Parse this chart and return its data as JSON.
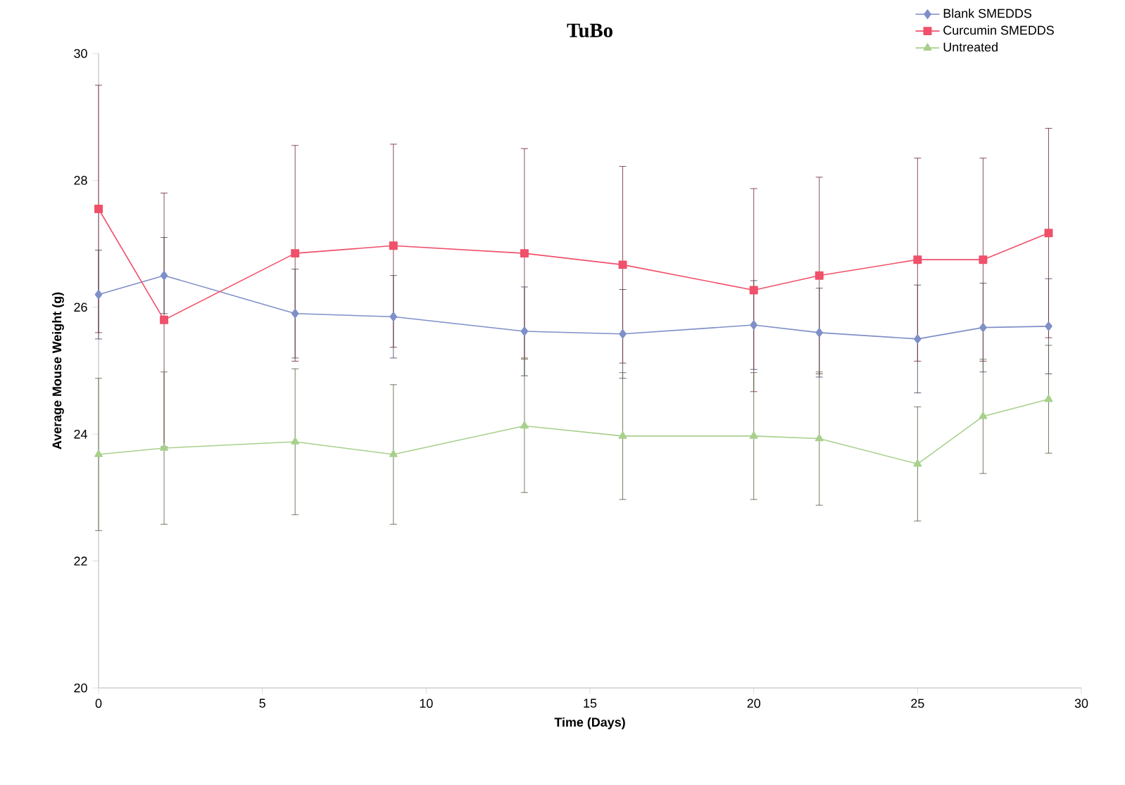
{
  "chart_data": {
    "type": "line",
    "title": "TuBo",
    "xlabel": "Time (Days)",
    "ylabel": "Average Mouse Weight (g)",
    "x": [
      0,
      2,
      6,
      9,
      13,
      16,
      20,
      22,
      25,
      27,
      29
    ],
    "xlim": [
      0,
      30
    ],
    "xticks": [
      0,
      5,
      10,
      15,
      20,
      25,
      30
    ],
    "ylim": [
      20,
      30
    ],
    "yticks": [
      20,
      22,
      24,
      26,
      28,
      30
    ],
    "grid": false,
    "legend": "top right",
    "line_style": "solid",
    "series": [
      {
        "name": "Blank SMEDDS",
        "color": "#7f8fc8",
        "marker": "diamond",
        "values": [
          26.2,
          26.5,
          25.9,
          25.85,
          25.62,
          25.58,
          25.72,
          25.6,
          25.5,
          25.68,
          25.7
        ],
        "errors": [
          0.7,
          0.6,
          0.7,
          0.65,
          0.7,
          0.7,
          0.7,
          0.7,
          0.85,
          0.7,
          0.75
        ]
      },
      {
        "name": "Curcumin SMEDDS",
        "color": "#f0506a",
        "marker": "square",
        "values": [
          27.55,
          25.8,
          26.85,
          26.97,
          26.85,
          26.67,
          26.27,
          26.5,
          26.75,
          26.75,
          27.17
        ],
        "errors": [
          1.95,
          2.0,
          1.7,
          1.6,
          1.65,
          1.55,
          1.6,
          1.55,
          1.6,
          1.6,
          1.65
        ]
      },
      {
        "name": "Untreated",
        "color": "#a8d08d",
        "marker": "triangle",
        "values": [
          23.68,
          23.78,
          23.88,
          23.68,
          24.13,
          23.97,
          23.97,
          23.93,
          23.53,
          24.28,
          24.55
        ],
        "errors": [
          1.2,
          1.2,
          1.15,
          1.1,
          1.05,
          1.0,
          1.0,
          1.05,
          0.9,
          0.9,
          0.85
        ]
      }
    ]
  }
}
